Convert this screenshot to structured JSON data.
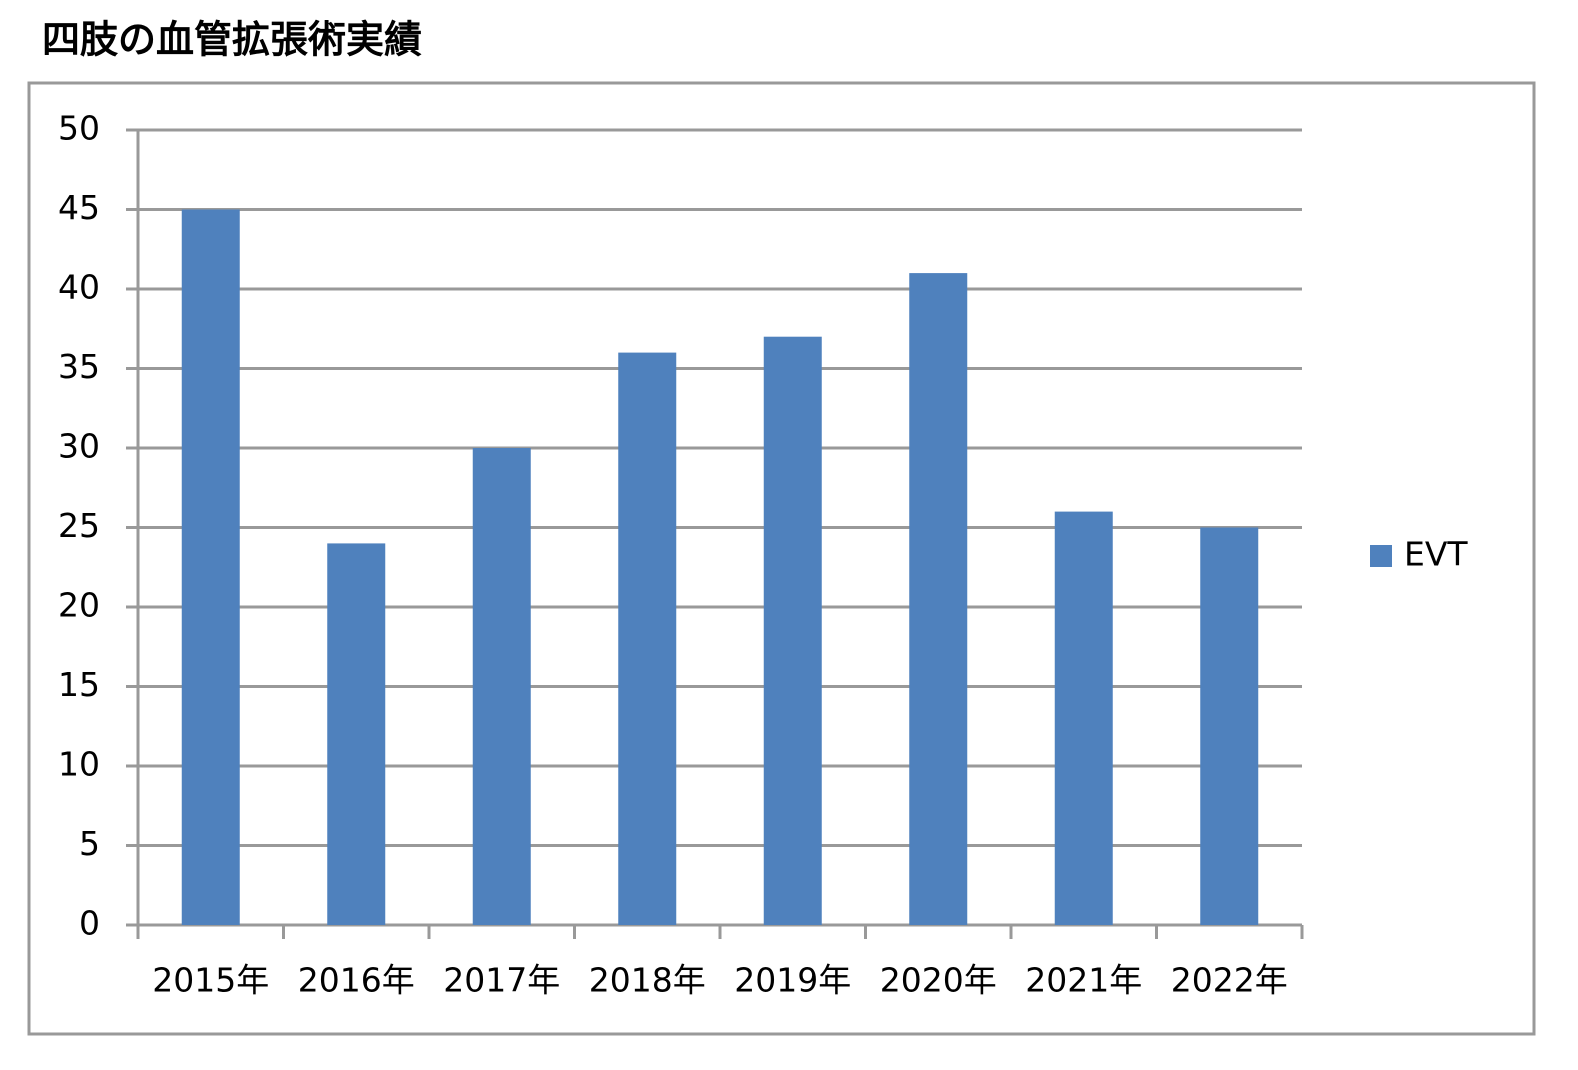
{
  "chart_data": {
    "type": "bar",
    "title": "四肢の血管拡張術実績",
    "categories": [
      "2015年",
      "2016年",
      "2017年",
      "2018年",
      "2019年",
      "2020年",
      "2021年",
      "2022年"
    ],
    "series": [
      {
        "name": "EVT",
        "color": "#4f81bd",
        "values": [
          45,
          24,
          30,
          36,
          37,
          41,
          26,
          25
        ]
      }
    ],
    "ylim": [
      0,
      50
    ],
    "yticks": [
      0,
      5,
      10,
      15,
      20,
      25,
      30,
      35,
      40,
      45,
      50
    ],
    "grid": true,
    "legend": "right"
  }
}
